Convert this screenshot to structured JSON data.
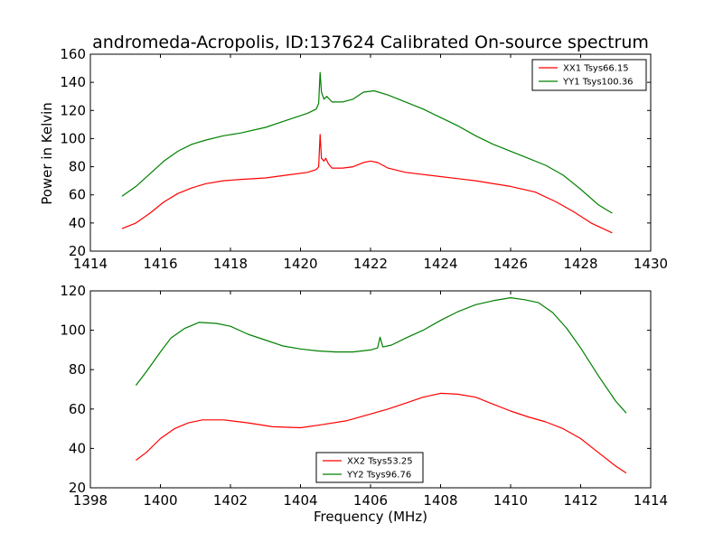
{
  "title": "andromeda-Acropolis, ID:137624 Calibrated On-source spectrum",
  "ylabel": "Power in Kelvin",
  "xlabel": "Frequency (MHz)",
  "colors": {
    "red": "#ff0000",
    "green": "#008000"
  },
  "chart_data": [
    {
      "type": "line",
      "xlim": [
        1414,
        1430
      ],
      "ylim": [
        20,
        160
      ],
      "xticks": [
        1414,
        1416,
        1418,
        1420,
        1422,
        1424,
        1426,
        1428,
        1430
      ],
      "yticks": [
        20,
        40,
        60,
        80,
        100,
        120,
        140,
        160
      ],
      "legend_position": "top-right",
      "series": [
        {
          "name": "XX1 Tsys66.15",
          "color": "#ff0000",
          "points": [
            [
              1414.9,
              36
            ],
            [
              1415.3,
              40
            ],
            [
              1415.7,
              47
            ],
            [
              1416.1,
              55
            ],
            [
              1416.5,
              61
            ],
            [
              1416.9,
              65
            ],
            [
              1417.3,
              68
            ],
            [
              1417.8,
              70
            ],
            [
              1418.3,
              71
            ],
            [
              1419.0,
              72
            ],
            [
              1419.6,
              74
            ],
            [
              1420.2,
              76
            ],
            [
              1420.45,
              78
            ],
            [
              1420.52,
              80
            ],
            [
              1420.56,
              103
            ],
            [
              1420.6,
              86
            ],
            [
              1420.67,
              84
            ],
            [
              1420.72,
              86
            ],
            [
              1420.8,
              82
            ],
            [
              1420.9,
              79
            ],
            [
              1421.2,
              79
            ],
            [
              1421.5,
              80
            ],
            [
              1421.8,
              83
            ],
            [
              1422.0,
              84
            ],
            [
              1422.2,
              83
            ],
            [
              1422.5,
              79
            ],
            [
              1423.0,
              76
            ],
            [
              1424.0,
              73
            ],
            [
              1425.0,
              70
            ],
            [
              1426.0,
              66
            ],
            [
              1426.7,
              62
            ],
            [
              1427.3,
              55
            ],
            [
              1427.8,
              48
            ],
            [
              1428.3,
              40
            ],
            [
              1428.9,
              33
            ]
          ]
        },
        {
          "name": "YY1 Tsys100.36",
          "color": "#008000",
          "points": [
            [
              1414.9,
              59
            ],
            [
              1415.3,
              66
            ],
            [
              1415.7,
              75
            ],
            [
              1416.1,
              84
            ],
            [
              1416.5,
              91
            ],
            [
              1416.9,
              96
            ],
            [
              1417.3,
              99
            ],
            [
              1417.8,
              102
            ],
            [
              1418.3,
              104
            ],
            [
              1419.0,
              108
            ],
            [
              1419.6,
              113
            ],
            [
              1420.2,
              118
            ],
            [
              1420.45,
              121
            ],
            [
              1420.52,
              125
            ],
            [
              1420.56,
              147
            ],
            [
              1420.6,
              133
            ],
            [
              1420.67,
              128
            ],
            [
              1420.75,
              130
            ],
            [
              1420.9,
              126
            ],
            [
              1421.2,
              126
            ],
            [
              1421.5,
              128
            ],
            [
              1421.8,
              133
            ],
            [
              1422.1,
              134
            ],
            [
              1422.5,
              131
            ],
            [
              1423.0,
              126
            ],
            [
              1423.5,
              121
            ],
            [
              1424.0,
              115
            ],
            [
              1424.5,
              109
            ],
            [
              1425.0,
              102
            ],
            [
              1425.5,
              96
            ],
            [
              1426.0,
              91
            ],
            [
              1426.5,
              86
            ],
            [
              1427.0,
              81
            ],
            [
              1427.5,
              74
            ],
            [
              1428.0,
              64
            ],
            [
              1428.5,
              53
            ],
            [
              1428.9,
              47
            ]
          ]
        }
      ]
    },
    {
      "type": "line",
      "xlim": [
        1398,
        1414
      ],
      "ylim": [
        20,
        120
      ],
      "xticks": [
        1398,
        1400,
        1402,
        1404,
        1406,
        1408,
        1410,
        1412,
        1414
      ],
      "yticks": [
        20,
        40,
        60,
        80,
        100,
        120
      ],
      "legend_position": "bottom-center",
      "series": [
        {
          "name": "XX2 Tsys53.25",
          "color": "#ff0000",
          "points": [
            [
              1399.3,
              34
            ],
            [
              1399.6,
              38
            ],
            [
              1400.0,
              45
            ],
            [
              1400.4,
              50
            ],
            [
              1400.8,
              53
            ],
            [
              1401.2,
              54.5
            ],
            [
              1401.8,
              54.5
            ],
            [
              1402.5,
              53
            ],
            [
              1403.2,
              51
            ],
            [
              1404.0,
              50.5
            ],
            [
              1404.6,
              52
            ],
            [
              1405.3,
              54
            ],
            [
              1406.0,
              57.5
            ],
            [
              1406.5,
              60
            ],
            [
              1407.0,
              63
            ],
            [
              1407.5,
              66
            ],
            [
              1408.0,
              68
            ],
            [
              1408.5,
              67.5
            ],
            [
              1409.0,
              66
            ],
            [
              1409.5,
              62.5
            ],
            [
              1410.0,
              59
            ],
            [
              1410.5,
              56
            ],
            [
              1411.0,
              53.5
            ],
            [
              1411.5,
              50
            ],
            [
              1412.0,
              45
            ],
            [
              1412.5,
              38
            ],
            [
              1413.0,
              31
            ],
            [
              1413.3,
              27.5
            ]
          ]
        },
        {
          "name": "YY2 Tsys96.76",
          "color": "#008000",
          "points": [
            [
              1399.3,
              72
            ],
            [
              1399.6,
              79
            ],
            [
              1400.0,
              89
            ],
            [
              1400.3,
              96
            ],
            [
              1400.7,
              101
            ],
            [
              1401.1,
              104
            ],
            [
              1401.6,
              103.5
            ],
            [
              1402.0,
              102
            ],
            [
              1402.5,
              98
            ],
            [
              1403.0,
              95
            ],
            [
              1403.5,
              92
            ],
            [
              1404.0,
              90.5
            ],
            [
              1404.5,
              89.5
            ],
            [
              1405.0,
              89
            ],
            [
              1405.5,
              89
            ],
            [
              1406.0,
              90
            ],
            [
              1406.2,
              91
            ],
            [
              1406.27,
              96.5
            ],
            [
              1406.35,
              91.5
            ],
            [
              1406.6,
              92.5
            ],
            [
              1407.0,
              96
            ],
            [
              1407.5,
              100
            ],
            [
              1408.0,
              105
            ],
            [
              1408.5,
              109.5
            ],
            [
              1409.0,
              113
            ],
            [
              1409.5,
              115
            ],
            [
              1410.0,
              116.5
            ],
            [
              1410.4,
              115.5
            ],
            [
              1410.8,
              114
            ],
            [
              1411.2,
              109
            ],
            [
              1411.6,
              101
            ],
            [
              1412.0,
              91
            ],
            [
              1412.5,
              77
            ],
            [
              1413.0,
              64
            ],
            [
              1413.3,
              58
            ]
          ]
        }
      ]
    }
  ]
}
